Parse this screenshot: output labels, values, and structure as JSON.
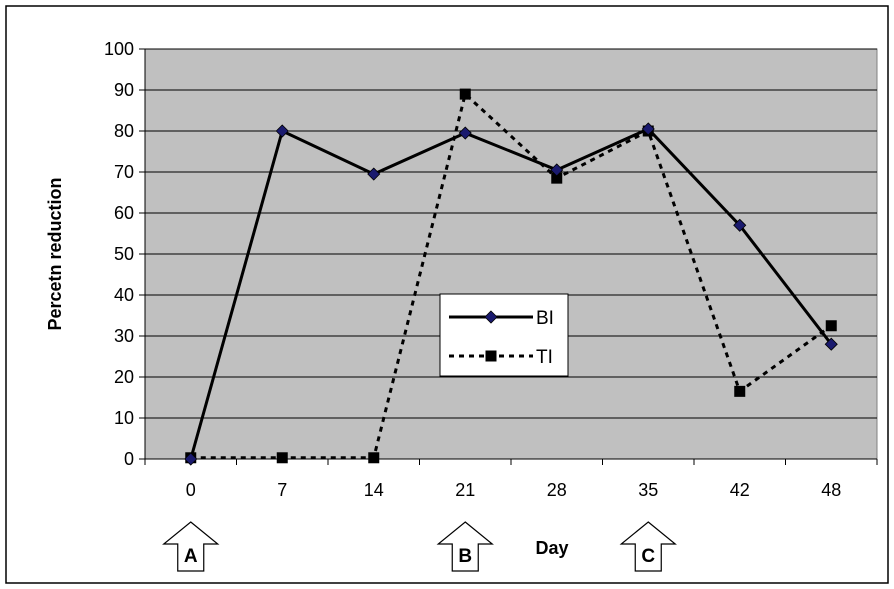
{
  "chart_data": {
    "type": "line",
    "categories": [
      "0",
      "7",
      "14",
      "21",
      "28",
      "35",
      "42",
      "48"
    ],
    "series": [
      {
        "name": "BI",
        "values": [
          0,
          80,
          69.5,
          79.5,
          70.5,
          80.5,
          57,
          28
        ],
        "line": "solid",
        "marker": "diamond",
        "marker_color": "#1a1a6e"
      },
      {
        "name": "TI",
        "values": [
          0.3,
          0.3,
          0.3,
          89,
          68.5,
          80,
          16.5,
          32.5
        ],
        "line": "dashed",
        "marker": "square",
        "marker_color": "#000000"
      }
    ],
    "xlabel": "Day",
    "ylabel": "Percetn reduction",
    "ylim": [
      0,
      100
    ],
    "yticks": [
      "0",
      "10",
      "20",
      "30",
      "40",
      "50",
      "60",
      "70",
      "80",
      "90",
      "100"
    ],
    "grid": true,
    "legend_position": "center",
    "plot_background": "#c0c0c0",
    "annotations": [
      {
        "label": "A",
        "category": "0"
      },
      {
        "label": "B",
        "category": "21"
      },
      {
        "label": "C",
        "category": "35"
      }
    ]
  }
}
